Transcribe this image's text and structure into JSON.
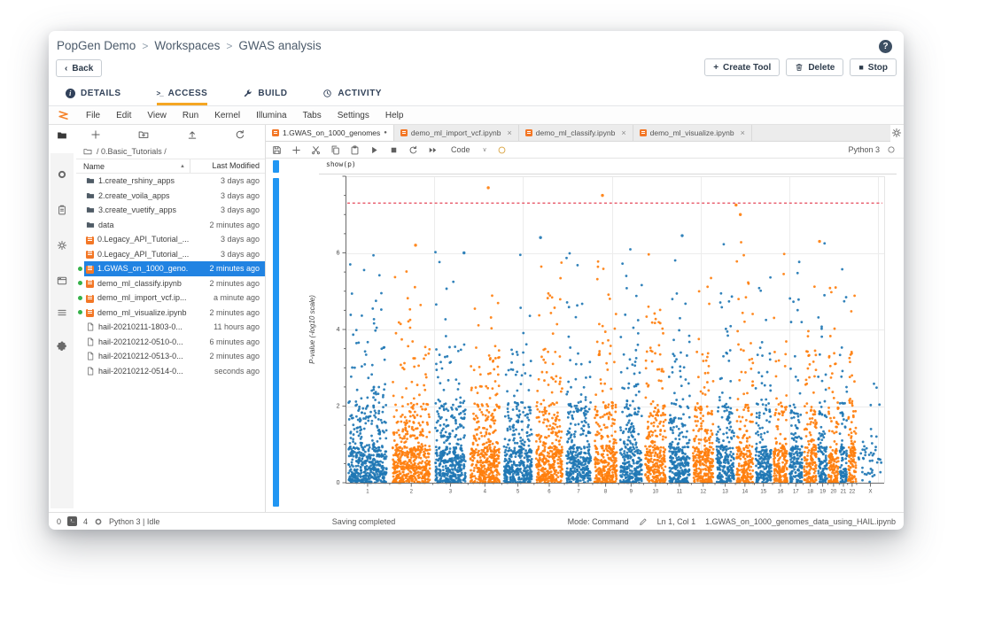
{
  "glyphs": {
    "breadcrumb_sep": ">",
    "back_chevron": "‹",
    "plus": "+",
    "stop_square": "■",
    "terminal_prompt": ">_",
    "info_i": "i",
    "sort_asc": "▲",
    "dirty": "●",
    "close": "×",
    "caret_down": "∨",
    "terminal_status": "›_"
  },
  "app": {
    "title_breadcrumb": [
      "PopGen Demo",
      "Workspaces",
      "GWAS analysis"
    ],
    "help_label": "?",
    "back_label": "Back",
    "actions": [
      {
        "label": "Create Tool",
        "icon": "plus"
      },
      {
        "label": "Delete",
        "icon": "trash"
      },
      {
        "label": "Stop",
        "icon": "stop-square"
      }
    ],
    "tabs": [
      {
        "label": "DETAILS",
        "icon": "info-circle",
        "active": false
      },
      {
        "label": "ACCESS",
        "icon": "terminal-prompt",
        "active": true
      },
      {
        "label": "BUILD",
        "icon": "wrench",
        "active": false
      },
      {
        "label": "ACTIVITY",
        "icon": "clock",
        "active": false
      }
    ],
    "accent_color": "#f5a623"
  },
  "jupyter": {
    "menu": [
      "File",
      "Edit",
      "View",
      "Run",
      "Kernel",
      "Illumina",
      "Tabs",
      "Settings",
      "Help"
    ],
    "file_browser": {
      "path": "/ 0.Basic_Tutorials /",
      "columns": {
        "name": "Name",
        "modified": "Last Modified"
      },
      "files": [
        {
          "name": "1.create_rshiny_apps",
          "modified": "3 days ago",
          "type": "folder",
          "running": false,
          "selected": false
        },
        {
          "name": "2.create_voila_apps",
          "modified": "3 days ago",
          "type": "folder",
          "running": false,
          "selected": false
        },
        {
          "name": "3.create_vuetify_apps",
          "modified": "3 days ago",
          "type": "folder",
          "running": false,
          "selected": false
        },
        {
          "name": "data",
          "modified": "2 minutes ago",
          "type": "folder",
          "running": false,
          "selected": false
        },
        {
          "name": "0.Legacy_API_Tutorial_...",
          "modified": "3 days ago",
          "type": "notebook",
          "running": false,
          "selected": false
        },
        {
          "name": "0.Legacy_API_Tutorial_...",
          "modified": "3 days ago",
          "type": "notebook",
          "running": false,
          "selected": false
        },
        {
          "name": "1.GWAS_on_1000_geno...",
          "modified": "2 minutes ago",
          "type": "notebook",
          "running": true,
          "selected": true
        },
        {
          "name": "demo_ml_classify.ipynb",
          "modified": "2 minutes ago",
          "type": "notebook",
          "running": true,
          "selected": false
        },
        {
          "name": "demo_ml_import_vcf.ip...",
          "modified": "a minute ago",
          "type": "notebook",
          "running": true,
          "selected": false
        },
        {
          "name": "demo_ml_visualize.ipynb",
          "modified": "2 minutes ago",
          "type": "notebook",
          "running": true,
          "selected": false
        },
        {
          "name": "hail-20210211-1803-0...",
          "modified": "11 hours ago",
          "type": "file",
          "running": false,
          "selected": false
        },
        {
          "name": "hail-20210212-0510-0...",
          "modified": "6 minutes ago",
          "type": "file",
          "running": false,
          "selected": false
        },
        {
          "name": "hail-20210212-0513-0...",
          "modified": "2 minutes ago",
          "type": "file",
          "running": false,
          "selected": false
        },
        {
          "name": "hail-20210212-0514-0...",
          "modified": "seconds ago",
          "type": "file",
          "running": false,
          "selected": false
        }
      ]
    },
    "doc_tabs": [
      {
        "label": "1.GWAS_on_1000_genomes",
        "dirty": true,
        "active": true,
        "closable": false
      },
      {
        "label": "demo_ml_import_vcf.ipynb",
        "dirty": false,
        "active": false,
        "closable": true
      },
      {
        "label": "demo_ml_classify.ipynb",
        "dirty": false,
        "active": false,
        "closable": true
      },
      {
        "label": "demo_ml_visualize.ipynb",
        "dirty": false,
        "active": false,
        "closable": true
      }
    ],
    "notebook_toolbar": {
      "cell_type": "Code",
      "kernel_name": "Python 3"
    },
    "cell_code": "show(p)",
    "status_bar": {
      "terminals_count": "0",
      "kernels_count": "4",
      "kernel_status": "Python 3 | Idle",
      "center_message": "Saving completed",
      "mode": "Mode: Command",
      "cursor": "Ln 1, Col 1",
      "active_file": "1.GWAS_on_1000_genomes_data_using_HAIL.ipynb"
    }
  },
  "chart_data": {
    "type": "scatter",
    "subtype": "manhattan-plot",
    "title": "",
    "xlabel": "",
    "ylabel": "P-value (-log10 scale)",
    "ylim": [
      0,
      8
    ],
    "yticks": [
      0,
      2,
      4,
      6
    ],
    "x_categories": [
      "1",
      "2",
      "3",
      "4",
      "5",
      "6",
      "7",
      "8",
      "9",
      "10",
      "11",
      "12",
      "13",
      "14",
      "15",
      "16",
      "17",
      "18",
      "19",
      "20",
      "21",
      "22",
      "X"
    ],
    "chromosome_lengths_mb": [
      249,
      243,
      198,
      190,
      182,
      171,
      159,
      146,
      141,
      134,
      135,
      133,
      115,
      107,
      102,
      90,
      83,
      80,
      59,
      64,
      47,
      51,
      155
    ],
    "colors": {
      "odd": "#1f77b4",
      "even": "#ff7f0e",
      "grid": "#ececec",
      "axis": "#6b6b6b",
      "threshold": "#e8596a"
    },
    "threshold_line": {
      "value": 7.3,
      "style": "dashed"
    },
    "points_per_mb": 2.1,
    "last_band_density": 0.3,
    "outliers": [
      {
        "x_frac": 0.265,
        "value": 7.7,
        "series": "even"
      },
      {
        "x_frac": 0.477,
        "value": 7.5,
        "series": "even"
      },
      {
        "x_frac": 0.725,
        "value": 7.25,
        "series": "even"
      },
      {
        "x_frac": 0.733,
        "value": 7.0,
        "series": "even"
      },
      {
        "x_frac": 0.625,
        "value": 6.45,
        "series": "odd"
      },
      {
        "x_frac": 0.362,
        "value": 6.4,
        "series": "odd"
      },
      {
        "x_frac": 0.88,
        "value": 6.3,
        "series": "even"
      },
      {
        "x_frac": 0.13,
        "value": 6.2,
        "series": "even"
      },
      {
        "x_frac": 0.22,
        "value": 6.0,
        "series": "odd"
      }
    ],
    "legend": "none",
    "grid": true,
    "rng_seed": 20210212
  }
}
